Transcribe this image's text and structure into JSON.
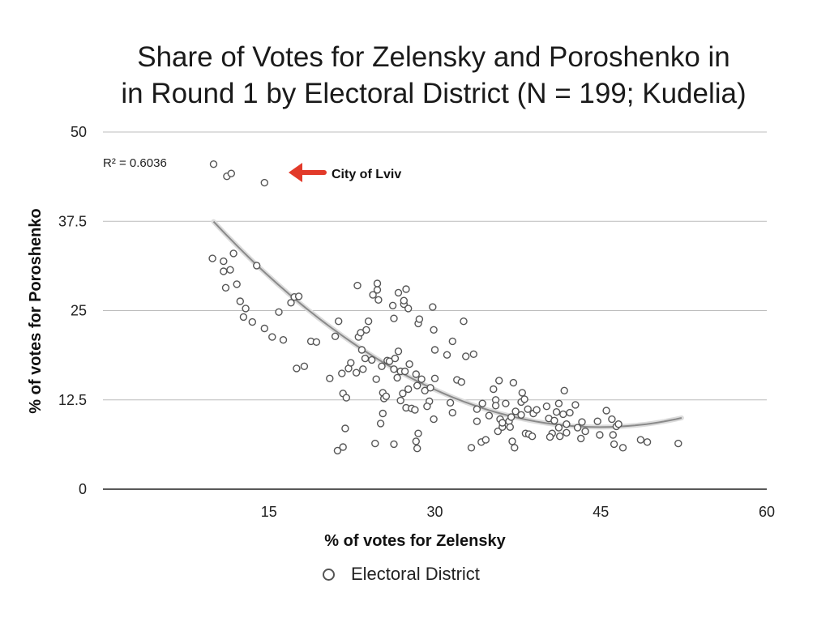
{
  "chart_data": {
    "type": "scatter",
    "title_lines": [
      "Share of Votes for Zelensky and Poroshenko in",
      "in Round 1 by Electoral District (N = 199; Kudelia)"
    ],
    "xlabel": "% of votes for Zelensky",
    "ylabel": "% of votes for Poroshenko",
    "xlim": [
      0,
      60
    ],
    "ylim": [
      0,
      50
    ],
    "x_ticks": [
      "15",
      "30",
      "45",
      "60"
    ],
    "y_ticks": [
      "0",
      "12.5",
      "25",
      "37.5",
      "50"
    ],
    "grid": "horizontal",
    "legend_position": "bottom",
    "r_squared_label": "R² = 0.6036",
    "annotation": {
      "text": "City of Lviv",
      "arrow_color": "#e23a2a"
    },
    "trendline": {
      "type": "polynomial",
      "x_range": [
        10,
        52.3
      ],
      "coefficients": [
        56.3,
        -2.12,
        0.0236
      ]
    },
    "series": [
      {
        "name": "Electoral District",
        "marker": "open-circle",
        "points": [
          [
            10,
            45.5
          ],
          [
            11.2,
            43.8
          ],
          [
            11.6,
            44.2
          ],
          [
            14.6,
            42.9
          ],
          [
            9.9,
            32.3
          ],
          [
            10.9,
            31.9
          ],
          [
            11.8,
            33
          ],
          [
            10.9,
            30.5
          ],
          [
            11.5,
            30.7
          ],
          [
            11.1,
            28.2
          ],
          [
            12.1,
            28.7
          ],
          [
            13.9,
            31.3
          ],
          [
            12.4,
            26.3
          ],
          [
            12.9,
            25.3
          ],
          [
            12.7,
            24.1
          ],
          [
            13.5,
            23.4
          ],
          [
            14.6,
            22.5
          ],
          [
            15.9,
            24.8
          ],
          [
            17,
            26.1
          ],
          [
            17.3,
            26.9
          ],
          [
            17.7,
            27
          ],
          [
            15.3,
            21.3
          ],
          [
            16.3,
            20.9
          ],
          [
            18.2,
            17.2
          ],
          [
            17.5,
            16.9
          ],
          [
            18.8,
            20.7
          ],
          [
            19.3,
            20.6
          ],
          [
            20.5,
            15.5
          ],
          [
            21.3,
            23.5
          ],
          [
            21,
            21.4
          ],
          [
            21.6,
            16.2
          ],
          [
            22.2,
            16.9
          ],
          [
            22.4,
            17.7
          ],
          [
            21.7,
            13.4
          ],
          [
            22,
            12.8
          ],
          [
            21.9,
            8.5
          ],
          [
            21.2,
            5.4
          ],
          [
            21.7,
            5.9
          ],
          [
            22.9,
            16.3
          ],
          [
            23.5,
            16.8
          ],
          [
            23.7,
            18.3
          ],
          [
            23.4,
            19.5
          ],
          [
            24.3,
            18.1
          ],
          [
            23.1,
            21.3
          ],
          [
            23.3,
            21.9
          ],
          [
            23.8,
            22.3
          ],
          [
            24,
            23.5
          ],
          [
            24.4,
            27.2
          ],
          [
            24.8,
            27.9
          ],
          [
            24.9,
            26.5
          ],
          [
            23,
            28.5
          ],
          [
            24.8,
            28.8
          ],
          [
            25.7,
            18
          ],
          [
            25.2,
            17.2
          ],
          [
            24.7,
            15.4
          ],
          [
            25.3,
            13.5
          ],
          [
            25.4,
            12.7
          ],
          [
            25.6,
            13
          ],
          [
            25.3,
            10.6
          ],
          [
            25.1,
            9.2
          ],
          [
            24.6,
            6.4
          ],
          [
            26.3,
            6.3
          ],
          [
            25.9,
            17.9
          ],
          [
            26.4,
            18.3
          ],
          [
            26.7,
            19.3
          ],
          [
            26.3,
            16.8
          ],
          [
            26.9,
            16.5
          ],
          [
            26.6,
            15.6
          ],
          [
            27.3,
            16.5
          ],
          [
            27.7,
            17.5
          ],
          [
            27.1,
            13.4
          ],
          [
            27.6,
            14
          ],
          [
            26.9,
            12.4
          ],
          [
            27.4,
            11.4
          ],
          [
            27.9,
            11.3
          ],
          [
            28.2,
            11.1
          ],
          [
            27.2,
            25.9
          ],
          [
            27.6,
            25.3
          ],
          [
            26.2,
            25.7
          ],
          [
            26.3,
            23.9
          ],
          [
            26.7,
            27.5
          ],
          [
            27.2,
            26.4
          ],
          [
            27.4,
            28
          ],
          [
            28.5,
            23.2
          ],
          [
            28.6,
            23.8
          ],
          [
            28.3,
            16.1
          ],
          [
            28.8,
            15.4
          ],
          [
            28.4,
            14.5
          ],
          [
            29.1,
            13.8
          ],
          [
            29.6,
            14.2
          ],
          [
            29.5,
            12.3
          ],
          [
            29.3,
            11.6
          ],
          [
            28.5,
            7.8
          ],
          [
            28.3,
            6.7
          ],
          [
            28.4,
            5.7
          ],
          [
            29.8,
            25.5
          ],
          [
            29.9,
            22.3
          ],
          [
            30,
            19.5
          ],
          [
            30,
            15.5
          ],
          [
            29.9,
            9.8
          ],
          [
            31.1,
            18.8
          ],
          [
            31.6,
            20.7
          ],
          [
            31.4,
            12.1
          ],
          [
            31.6,
            10.7
          ],
          [
            32,
            15.3
          ],
          [
            32.4,
            15
          ],
          [
            32.6,
            23.5
          ],
          [
            32.8,
            18.6
          ],
          [
            33.5,
            18.9
          ],
          [
            33.3,
            5.8
          ],
          [
            33.8,
            9.5
          ],
          [
            33.8,
            11.2
          ],
          [
            34.2,
            6.6
          ],
          [
            34.6,
            6.9
          ],
          [
            34.3,
            12
          ],
          [
            34.9,
            10.3
          ],
          [
            35.3,
            14
          ],
          [
            35.5,
            12.5
          ],
          [
            35.8,
            15.2
          ],
          [
            35.5,
            11.7
          ],
          [
            35.9,
            9.8
          ],
          [
            35.7,
            8.1
          ],
          [
            36.1,
            8.7
          ],
          [
            36.1,
            9.3
          ],
          [
            36.4,
            12
          ],
          [
            36.7,
            9.5
          ],
          [
            36.9,
            10.1
          ],
          [
            36.8,
            8.7
          ],
          [
            37,
            6.7
          ],
          [
            37.2,
            5.8
          ],
          [
            37.1,
            14.9
          ],
          [
            37.3,
            10.9
          ],
          [
            37.8,
            12.2
          ],
          [
            37.9,
            13.5
          ],
          [
            38.1,
            12.6
          ],
          [
            38.4,
            11.2
          ],
          [
            37.8,
            10.4
          ],
          [
            38.2,
            7.8
          ],
          [
            38.5,
            7.7
          ],
          [
            38.9,
            10.6
          ],
          [
            39.2,
            11.1
          ],
          [
            38.8,
            7.4
          ],
          [
            40.1,
            11.6
          ],
          [
            40.3,
            9.9
          ],
          [
            40.8,
            9.6
          ],
          [
            40.6,
            7.8
          ],
          [
            40.4,
            7.3
          ],
          [
            41,
            10.8
          ],
          [
            41.2,
            8.6
          ],
          [
            41.6,
            10.5
          ],
          [
            41.9,
            9.1
          ],
          [
            41.7,
            13.8
          ],
          [
            41.2,
            12
          ],
          [
            41.3,
            7.4
          ],
          [
            41.9,
            7.9
          ],
          [
            42.2,
            10.7
          ],
          [
            42.7,
            11.8
          ],
          [
            42.9,
            8.6
          ],
          [
            43.3,
            9.4
          ],
          [
            43.6,
            8.1
          ],
          [
            43.2,
            7.1
          ],
          [
            44.7,
            9.5
          ],
          [
            44.9,
            7.6
          ],
          [
            45.5,
            11
          ],
          [
            46,
            9.8
          ],
          [
            46.4,
            8.8
          ],
          [
            46.1,
            7.6
          ],
          [
            46.6,
            9.1
          ],
          [
            46.2,
            6.3
          ],
          [
            47,
            5.8
          ],
          [
            48.6,
            6.9
          ],
          [
            49.2,
            6.6
          ],
          [
            52,
            6.4
          ]
        ]
      }
    ]
  }
}
